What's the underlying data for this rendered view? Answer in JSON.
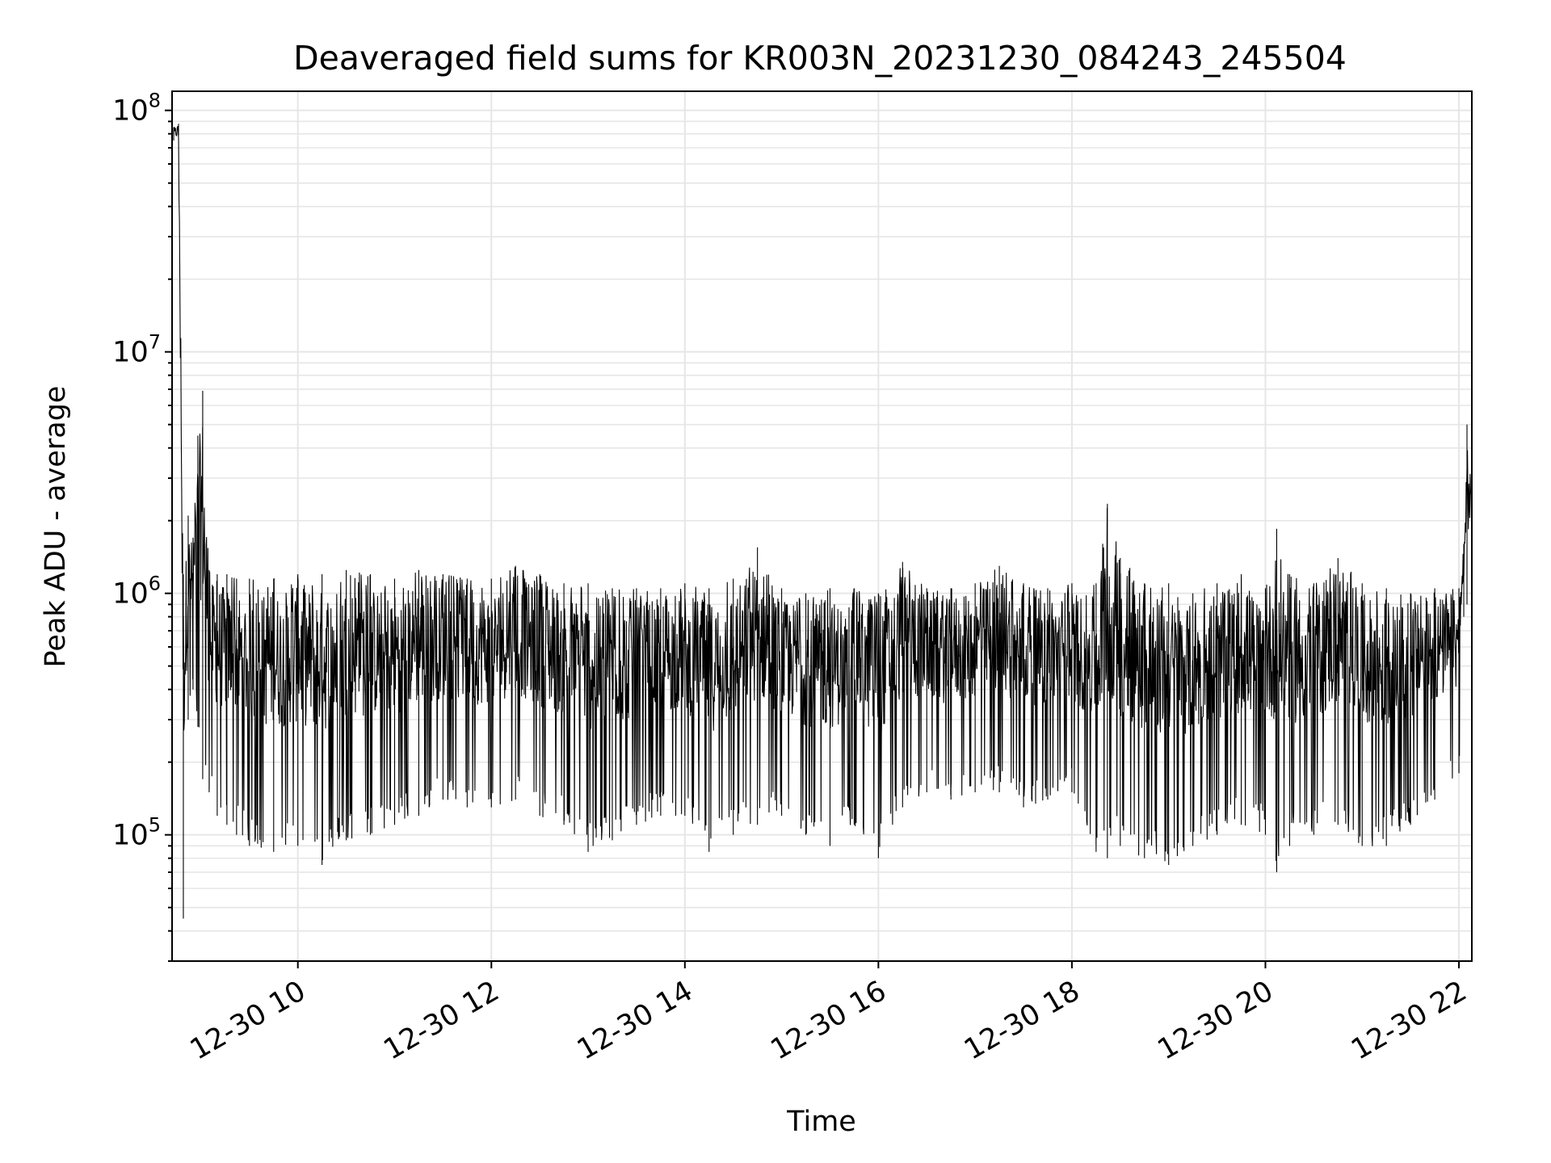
{
  "chart_data": {
    "type": "line",
    "title": "Deaveraged field sums for KR003N_20231230_084243_245504",
    "xlabel": "Time",
    "ylabel": "Peak ADU - average",
    "y_scale": "log",
    "ylim": [
      30000,
      120000000
    ],
    "xlim": [
      "2023-12-30 08:42",
      "2023-12-30 22:08"
    ],
    "grid": true,
    "line_color": "#000000",
    "x_ticks": [
      {
        "value": "2023-12-30 10:00",
        "label": "12-30 10"
      },
      {
        "value": "2023-12-30 12:00",
        "label": "12-30 12"
      },
      {
        "value": "2023-12-30 14:00",
        "label": "12-30 14"
      },
      {
        "value": "2023-12-30 16:00",
        "label": "12-30 16"
      },
      {
        "value": "2023-12-30 18:00",
        "label": "12-30 18"
      },
      {
        "value": "2023-12-30 20:00",
        "label": "12-30 20"
      },
      {
        "value": "2023-12-30 22:00",
        "label": "12-30 22"
      }
    ],
    "y_ticks": [
      {
        "value": 100000,
        "base": "10",
        "exp": "5"
      },
      {
        "value": 1000000,
        "base": "10",
        "exp": "6"
      },
      {
        "value": 10000000,
        "base": "10",
        "exp": "7"
      },
      {
        "value": 100000000,
        "base": "10",
        "exp": "8"
      }
    ],
    "series": [
      {
        "x": [
          "2023-12-30 08:43",
          "2023-12-30 08:46",
          "2023-12-30 08:49",
          "2023-12-30 08:52",
          "2023-12-30 08:55",
          "2023-12-30 08:58",
          "2023-12-30 09:01",
          "2023-12-30 09:05",
          "2023-12-30 09:10",
          "2023-12-30 09:16",
          "2023-12-30 09:22",
          "2023-12-30 09:30",
          "2023-12-30 09:45",
          "2023-12-30 10:00",
          "2023-12-30 10:15",
          "2023-12-30 10:30",
          "2023-12-30 10:45",
          "2023-12-30 11:00",
          "2023-12-30 11:15",
          "2023-12-30 11:30",
          "2023-12-30 11:45",
          "2023-12-30 12:00",
          "2023-12-30 12:15",
          "2023-12-30 12:30",
          "2023-12-30 12:45",
          "2023-12-30 13:00",
          "2023-12-30 13:15",
          "2023-12-30 13:30",
          "2023-12-30 13:45",
          "2023-12-30 14:00",
          "2023-12-30 14:15",
          "2023-12-30 14:30",
          "2023-12-30 14:45",
          "2023-12-30 15:00",
          "2023-12-30 15:15",
          "2023-12-30 15:30",
          "2023-12-30 15:45",
          "2023-12-30 16:00",
          "2023-12-30 16:15",
          "2023-12-30 16:30",
          "2023-12-30 16:45",
          "2023-12-30 17:00",
          "2023-12-30 17:15",
          "2023-12-30 17:30",
          "2023-12-30 17:45",
          "2023-12-30 18:00",
          "2023-12-30 18:15",
          "2023-12-30 18:22",
          "2023-12-30 18:30",
          "2023-12-30 18:45",
          "2023-12-30 19:00",
          "2023-12-30 19:15",
          "2023-12-30 19:30",
          "2023-12-30 19:45",
          "2023-12-30 20:00",
          "2023-12-30 20:07",
          "2023-12-30 20:15",
          "2023-12-30 20:30",
          "2023-12-30 20:45",
          "2023-12-30 21:00",
          "2023-12-30 21:15",
          "2023-12-30 21:30",
          "2023-12-30 21:45",
          "2023-12-30 22:00",
          "2023-12-30 22:03",
          "2023-12-30 22:05",
          "2023-12-30 22:08"
        ],
        "high": [
          85000000,
          88000000,
          1200000,
          2100000,
          1700000,
          4500000,
          6900000,
          1250000,
          1200000,
          1200000,
          1150000,
          1150000,
          1150000,
          1200000,
          1200000,
          1250000,
          1200000,
          1150000,
          1250000,
          1200000,
          1150000,
          1150000,
          1300000,
          1200000,
          1100000,
          1100000,
          1050000,
          1050000,
          1050000,
          1100000,
          1050000,
          1150000,
          1550000,
          1050000,
          1000000,
          1050000,
          1050000,
          1000000,
          1350000,
          1050000,
          1050000,
          1100000,
          1300000,
          1100000,
          1050000,
          1100000,
          1100000,
          2350000,
          1400000,
          1100000,
          1100000,
          1000000,
          1100000,
          1200000,
          1050000,
          1850000,
          1200000,
          1100000,
          1400000,
          1100000,
          1050000,
          1000000,
          1050000,
          1050000,
          1600000,
          5000000,
          2700000
        ],
        "low": [
          75000000,
          78000000,
          45000,
          300000,
          400000,
          280000,
          170000,
          150000,
          120000,
          110000,
          100000,
          90000,
          85000,
          90000,
          75000,
          95000,
          100000,
          110000,
          120000,
          140000,
          130000,
          130000,
          140000,
          120000,
          110000,
          85000,
          95000,
          110000,
          120000,
          120000,
          85000,
          100000,
          110000,
          120000,
          100000,
          90000,
          110000,
          80000,
          130000,
          150000,
          140000,
          150000,
          150000,
          130000,
          140000,
          150000,
          85000,
          80000,
          90000,
          80000,
          75000,
          90000,
          100000,
          110000,
          100000,
          70000,
          90000,
          100000,
          110000,
          90000,
          90000,
          110000,
          140000,
          180000,
          800000,
          900000,
          950000
        ]
      }
    ]
  }
}
